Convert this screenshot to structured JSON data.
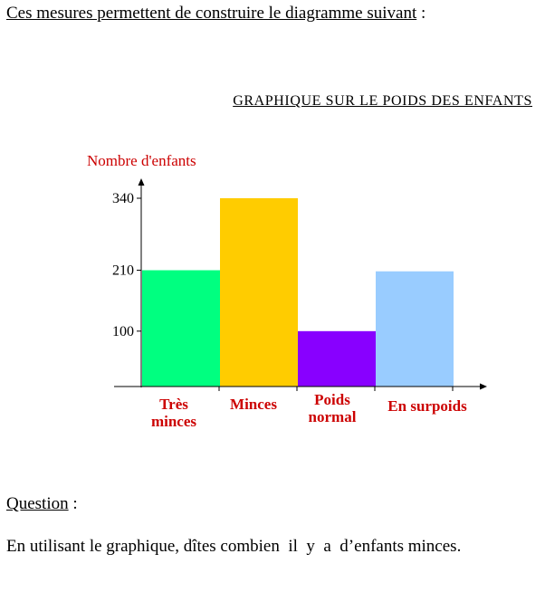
{
  "intro": {
    "text": "Ces mesures permettent de construire le diagramme suivant",
    "suffix": " :"
  },
  "question": {
    "label": "Question",
    "suffix": " :",
    "text": "En utilisant le graphique, dîtes combien  il  y  a  d’enfants minces."
  },
  "chart_data": {
    "type": "bar",
    "title": "GRAPHIQUE  SUR  LE  POIDS  DES  ENFANTS",
    "ylabel": "Nombre d'enfants",
    "xlabel": "",
    "categories": [
      [
        "Très",
        "minces"
      ],
      [
        "Minces"
      ],
      [
        "Poids",
        "normal"
      ],
      [
        "En surpoids"
      ]
    ],
    "values": [
      210,
      340,
      100,
      208
    ],
    "colors": [
      "#00ff80",
      "#ffcc00",
      "#8800ff",
      "#99ccff"
    ],
    "yticks": [
      100,
      210,
      340
    ],
    "ylim": [
      0,
      400
    ],
    "grid": false,
    "label_color": "#cc0000"
  }
}
